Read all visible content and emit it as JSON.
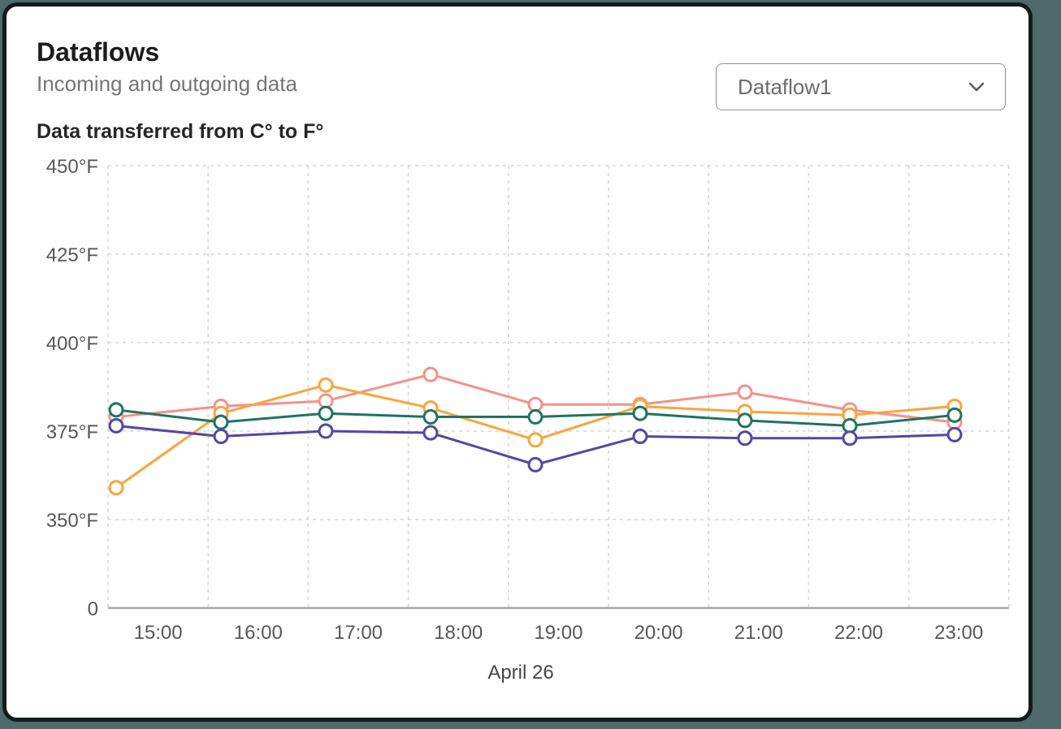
{
  "page": {
    "background_color": "#4E6A6D",
    "card_border_color": "#151B1B"
  },
  "header": {
    "title": "Dataflows",
    "subtitle": "Incoming and outgoing data",
    "dropdown": {
      "value": "Dataflow1",
      "icon": "chevron-down-icon"
    }
  },
  "chart_data": {
    "type": "line",
    "title": "Data transferred from C° to F°",
    "x_axis_label": "April 26",
    "categories": [
      "15:00",
      "16:00",
      "17:00",
      "18:00",
      "19:00",
      "20:00",
      "21:00",
      "22:00",
      "23:00"
    ],
    "y_tick_labels": [
      "450°F",
      "425°F",
      "400°F",
      "375°F",
      "350°F",
      "0"
    ],
    "y_gridline_values": [
      450,
      425,
      400,
      375,
      350
    ],
    "y_axis_note": "bottom baseline labeled 0 (broken axis)",
    "grid": true,
    "legend_position": "none",
    "marker": "open-circle",
    "colors": {
      "gridline": "#D6D6D6",
      "axis_line": "#A6A6A6",
      "tick_text": "#575757",
      "axis_label_text": "#454545"
    },
    "series": [
      {
        "name": "series-1-pink",
        "color": "#F5918A",
        "values": [
          379,
          382,
          383.5,
          391,
          382.5,
          382.5,
          386,
          381,
          377.5
        ]
      },
      {
        "name": "series-2-orange",
        "color": "#F9A43E",
        "values": [
          359,
          380,
          388,
          381.5,
          372.5,
          382,
          380.5,
          379.5,
          382
        ]
      },
      {
        "name": "series-3-teal",
        "color": "#1E7361",
        "values": [
          381,
          377.5,
          380,
          379,
          379,
          380,
          378,
          376.5,
          379.5
        ]
      },
      {
        "name": "series-4-purple",
        "color": "#5446A6",
        "values": [
          376.5,
          373.5,
          375,
          374.5,
          365.5,
          373.5,
          373,
          373,
          374
        ]
      }
    ]
  }
}
